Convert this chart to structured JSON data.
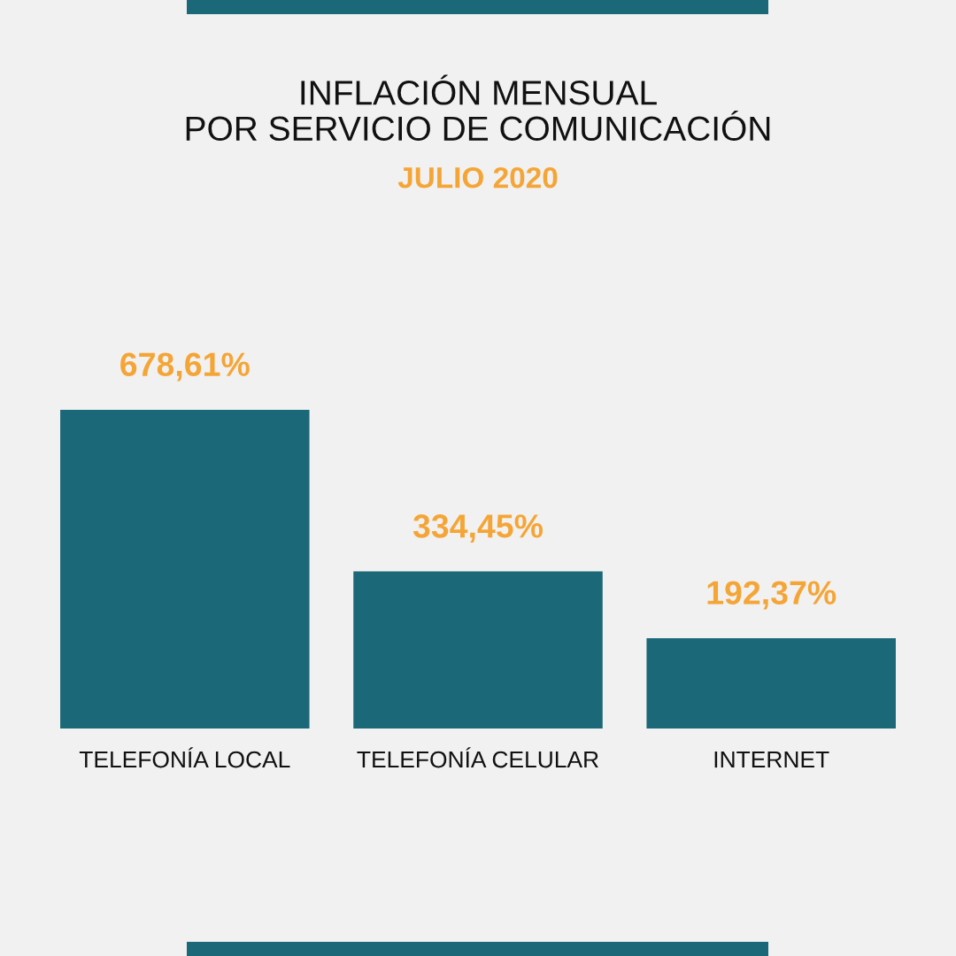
{
  "chart_data": {
    "type": "bar",
    "title": "INFLACIÓN MENSUAL\nPOR SERVICIO DE COMUNICACIÓN",
    "subtitle": "JULIO 2020",
    "categories": [
      "TELEFONÍA LOCAL",
      "TELEFONÍA CELULAR",
      "INTERNET"
    ],
    "values": [
      678.61,
      334.45,
      192.37
    ],
    "color": "#1a6878",
    "value_labels": [
      "678,61%",
      "334,45%",
      "192,37%"
    ],
    "tick_labels": "x"
  }
}
